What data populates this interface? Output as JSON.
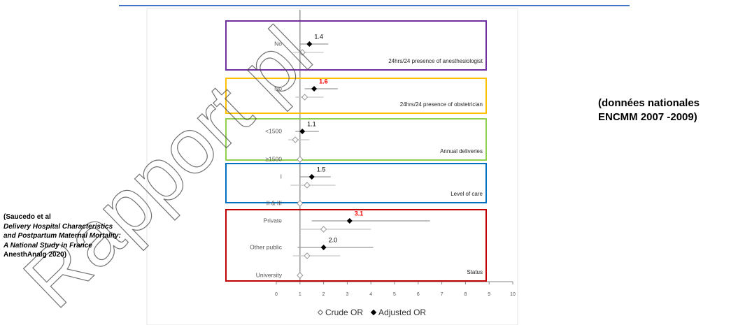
{
  "chart_data": {
    "type": "forest",
    "xlim": [
      0,
      10
    ],
    "xticks": [
      0,
      1,
      2,
      3,
      4,
      5,
      6,
      7,
      8,
      9,
      10
    ],
    "reference_line": 1,
    "series": [
      {
        "name": "Crude OR",
        "color": "#ffffff"
      },
      {
        "name": "Adjusted OR",
        "color": "#000000"
      }
    ],
    "groups": [
      {
        "name": "24hrs/24 presence of anesthesiologist",
        "color": "#7030a0",
        "rows": [
          {
            "label": "No",
            "adjusted": {
              "value": 1.4,
              "low": 1.0,
              "high": 2.2,
              "label": "1.4",
              "label_color": "#000000"
            },
            "crude": {
              "value": 1.1,
              "low": 0.7,
              "high": 2.0
            }
          }
        ]
      },
      {
        "name": "24hrs/24 presence of obstetrician",
        "color": "#ffc000",
        "rows": [
          {
            "label": "No",
            "adjusted": {
              "value": 1.6,
              "low": 1.2,
              "high": 2.6,
              "label": "1.6",
              "label_color": "#ff0000"
            },
            "crude": {
              "value": 1.2,
              "low": 0.8,
              "high": 2.0
            }
          }
        ]
      },
      {
        "name": "Annual deliveries",
        "color": "#92d050",
        "rows": [
          {
            "label": "<1500",
            "adjusted": {
              "value": 1.1,
              "low": 0.8,
              "high": 1.8,
              "label": "1.1",
              "label_color": "#000000"
            },
            "crude": {
              "value": 0.8,
              "low": 0.5,
              "high": 1.4
            }
          },
          {
            "label": "≥1500",
            "adjusted": null,
            "crude": {
              "value": 1
            }
          }
        ]
      },
      {
        "name": "Level of care",
        "color": "#0070c0",
        "rows": [
          {
            "label": "I",
            "adjusted": {
              "value": 1.5,
              "low": 1.0,
              "high": 2.3,
              "label": "1.5",
              "label_color": "#000000"
            },
            "crude": {
              "value": 1.3,
              "low": 0.6,
              "high": 2.5
            }
          },
          {
            "label": "II & III",
            "adjusted": null,
            "crude": {
              "value": 1
            }
          }
        ]
      },
      {
        "name": "Status",
        "color": "#c00000",
        "rows": [
          {
            "label": "Private",
            "adjusted": {
              "value": 3.1,
              "low": 1.5,
              "high": 6.5,
              "label": "3.1",
              "label_color": "#ff0000"
            },
            "crude": {
              "value": 2.0,
              "low": 1.0,
              "high": 4.0
            }
          },
          {
            "label": "Other public",
            "adjusted": {
              "value": 2.0,
              "low": 0.9,
              "high": 4.1,
              "label": "2.0",
              "label_color": "#000000"
            },
            "crude": {
              "value": 1.3,
              "low": 0.7,
              "high": 2.7
            }
          },
          {
            "label": "University",
            "adjusted": null,
            "crude": {
              "value": 1
            }
          }
        ]
      }
    ]
  },
  "watermark": "Rapport pl",
  "note": {
    "lines": [
      "(données nationales",
      "ENCMM 2007 -2009)"
    ]
  },
  "citation": {
    "author": "(Saucedo et al",
    "title": "Delivery Hospital Characteristics and Postpartum Maternal Mortality: A National Study in France",
    "journal": "AnesthAnalg",
    "year": "2020)"
  }
}
